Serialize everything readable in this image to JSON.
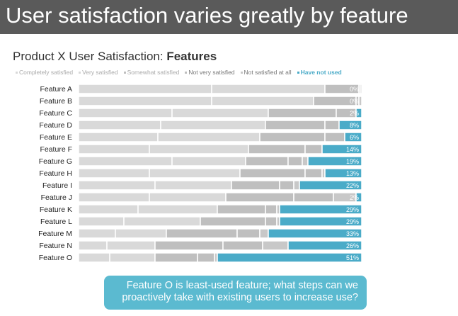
{
  "header": {
    "title": "User satisfaction varies greatly by feature"
  },
  "callout": {
    "line1": "Feature O is least-used feature; what steps can we",
    "line2": "proactively take with existing users to increase use?"
  },
  "chart_data": {
    "type": "bar",
    "orientation": "horizontal-stacked-100",
    "title_prefix": "Product X User Satisfaction: ",
    "title_bold": "Features",
    "legend_position": "top",
    "categories": [
      "Feature A",
      "Feature B",
      "Feature C",
      "Feature D",
      "Feature E",
      "Feature F",
      "Feature G",
      "Feature H",
      "Feature I",
      "Feature J",
      "Feature K",
      "Feature L",
      "Feature M",
      "Feature N",
      "Feature O"
    ],
    "series": [
      {
        "name": "Completely satisfied",
        "color": "#d9d9d9",
        "values": [
          47,
          47,
          33,
          29,
          28,
          25,
          33,
          25,
          27,
          25,
          21,
          16,
          13,
          10,
          11
        ]
      },
      {
        "name": "Very satisfied",
        "color": "#d9d9d9",
        "values": [
          40,
          36,
          34,
          37,
          36,
          35,
          26,
          32,
          27,
          27,
          28,
          27,
          18,
          17,
          16
        ]
      },
      {
        "name": "Somewhat satisfied",
        "color": "#bfbfbf",
        "values": [
          12,
          15,
          24,
          21,
          23,
          20,
          15,
          23,
          17,
          24,
          17,
          23,
          25,
          24,
          15
        ]
      },
      {
        "name": "Not very satisfied",
        "color": "#bfbfbf",
        "values": [
          0.5,
          1,
          7,
          5,
          7,
          6,
          5,
          6,
          5,
          14,
          4,
          4,
          8,
          14,
          6
        ]
      },
      {
        "name": "Not satisfied at all",
        "color": "#c8c8c8",
        "values": [
          0.5,
          1,
          0,
          0,
          0,
          0,
          2,
          1,
          2,
          8,
          1,
          1,
          3,
          9,
          1
        ]
      },
      {
        "name": "Have not used",
        "color": "#4aabc8",
        "values": [
          0,
          0,
          2,
          8,
          6,
          14,
          19,
          13,
          22,
          2,
          29,
          29,
          33,
          26,
          51
        ]
      }
    ],
    "data_labels": [
      "0%",
      "0%",
      "2%",
      "8%",
      "6%",
      "14%",
      "19%",
      "13%",
      "22%",
      "2%",
      "29%",
      "29%",
      "33%",
      "26%",
      "51%"
    ],
    "xlim": [
      0,
      100
    ]
  }
}
